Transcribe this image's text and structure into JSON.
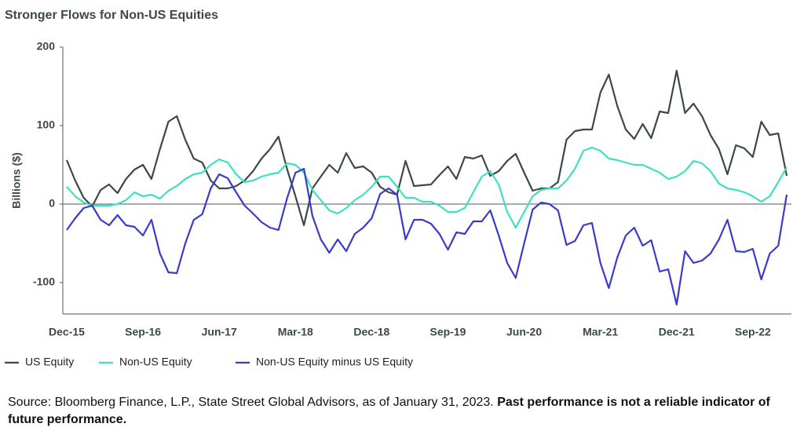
{
  "chart_data": {
    "type": "line",
    "title": "Stronger Flows for Non-US Equities",
    "y_label": "Billions ($)",
    "categories": [
      "Dec-15",
      null,
      null,
      null,
      null,
      null,
      null,
      null,
      null,
      "Sep-16",
      null,
      null,
      null,
      null,
      null,
      null,
      null,
      null,
      "Jun-17",
      null,
      null,
      null,
      null,
      null,
      null,
      null,
      null,
      "Mar-18",
      null,
      null,
      null,
      null,
      null,
      null,
      null,
      null,
      "Dec-18",
      null,
      null,
      null,
      null,
      null,
      null,
      null,
      null,
      "Sep-19",
      null,
      null,
      null,
      null,
      null,
      null,
      null,
      null,
      "Jun-20",
      null,
      null,
      null,
      null,
      null,
      null,
      null,
      null,
      "Mar-21",
      null,
      null,
      null,
      null,
      null,
      null,
      null,
      null,
      "Dec-21",
      null,
      null,
      null,
      null,
      null,
      null,
      null,
      null,
      "Sep-22",
      null,
      null,
      null,
      null
    ],
    "series": [
      {
        "name": "US Equity",
        "color": "#3d4a43",
        "values": [
          56,
          30,
          8,
          -3,
          18,
          25,
          14,
          32,
          44,
          50,
          32,
          70,
          105,
          112,
          82,
          58,
          53,
          30,
          20,
          20,
          23,
          30,
          42,
          58,
          70,
          86,
          45,
          10,
          -27,
          20,
          35,
          50,
          40,
          65,
          46,
          48,
          40,
          22,
          15,
          12,
          55,
          23,
          24,
          25,
          37,
          48,
          32,
          60,
          58,
          62,
          36,
          42,
          55,
          64,
          40,
          17,
          20,
          20,
          28,
          82,
          93,
          95,
          95,
          142,
          165,
          125,
          95,
          83,
          102,
          84,
          118,
          116,
          170,
          116,
          128,
          112,
          88,
          70,
          38,
          75,
          71,
          60,
          105,
          88,
          90,
          36
        ]
      },
      {
        "name": "Non-US Equity",
        "color": "#3ee0bd",
        "values": [
          22,
          10,
          2,
          -2,
          -2,
          -2,
          0,
          5,
          15,
          10,
          12,
          7,
          17,
          23,
          32,
          38,
          40,
          50,
          57,
          53,
          38,
          28,
          30,
          35,
          38,
          40,
          52,
          50,
          40,
          18,
          5,
          -8,
          -12,
          -5,
          5,
          12,
          22,
          35,
          35,
          22,
          8,
          8,
          3,
          3,
          -2,
          -10,
          -10,
          -5,
          15,
          35,
          42,
          25,
          -10,
          -30,
          -10,
          10,
          18,
          20,
          20,
          30,
          45,
          68,
          72,
          68,
          58,
          56,
          53,
          50,
          50,
          45,
          40,
          32,
          35,
          42,
          55,
          52,
          42,
          26,
          20,
          18,
          15,
          10,
          3,
          10,
          28,
          47
        ]
      },
      {
        "name": "Non-US Equity minus US Equity",
        "color": "#3a3acc",
        "values": [
          -33,
          -18,
          -5,
          -2,
          -20,
          -27,
          -14,
          -27,
          -29,
          -40,
          -20,
          -63,
          -87,
          -88,
          -50,
          -20,
          -13,
          20,
          38,
          33,
          15,
          -2,
          -12,
          -23,
          -30,
          -33,
          7,
          40,
          45,
          -15,
          -45,
          -62,
          -45,
          -60,
          -38,
          -30,
          -18,
          13,
          20,
          12,
          -45,
          -20,
          -20,
          -25,
          -38,
          -58,
          -36,
          -38,
          -22,
          -22,
          -8,
          -40,
          -75,
          -94,
          -50,
          -7,
          2,
          0,
          -8,
          -52,
          -47,
          -27,
          -24,
          -75,
          -107,
          -68,
          -40,
          -30,
          -53,
          -46,
          -86,
          -83,
          -128,
          -60,
          -75,
          -72,
          -63,
          -45,
          -20,
          -60,
          -61,
          -57,
          -96,
          -63,
          -53,
          12
        ]
      }
    ],
    "ylim": [
      -140,
      200
    ],
    "yticks": [
      -100,
      0,
      100,
      200
    ],
    "source": "Source: Bloomberg Finance, L.P., State Street Global Advisors, as of January 31, 2023.",
    "disclaimer": "Past performance is not a reliable indicator of future performance."
  }
}
